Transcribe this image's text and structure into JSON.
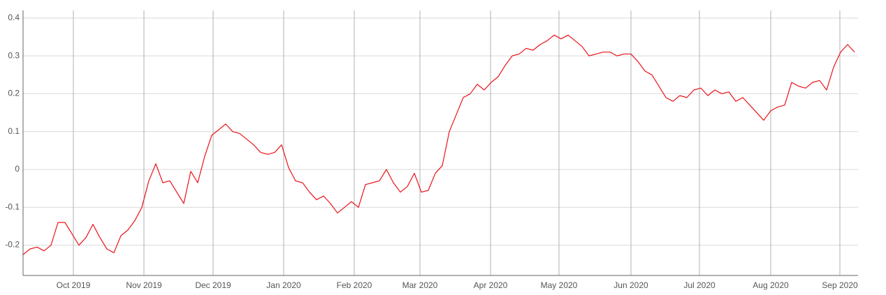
{
  "chart_data": {
    "type": "line",
    "color": "#e8141b",
    "values": [
      -0.225,
      -0.21,
      -0.205,
      -0.215,
      -0.2,
      -0.14,
      -0.14,
      -0.17,
      -0.2,
      -0.18,
      -0.145,
      -0.18,
      -0.21,
      -0.22,
      -0.175,
      -0.16,
      -0.135,
      -0.1,
      -0.03,
      0.015,
      -0.035,
      -0.03,
      -0.06,
      -0.09,
      -0.005,
      -0.035,
      0.035,
      0.09,
      0.105,
      0.12,
      0.1,
      0.095,
      0.08,
      0.065,
      0.045,
      0.04,
      0.045,
      0.065,
      0.005,
      -0.03,
      -0.035,
      -0.06,
      -0.08,
      -0.07,
      -0.09,
      -0.115,
      -0.1,
      -0.085,
      -0.1,
      -0.04,
      -0.035,
      -0.03,
      0.0,
      -0.035,
      -0.06,
      -0.045,
      -0.01,
      -0.06,
      -0.055,
      -0.01,
      0.01,
      0.1,
      0.145,
      0.19,
      0.2,
      0.225,
      0.21,
      0.23,
      0.245,
      0.275,
      0.3,
      0.305,
      0.32,
      0.315,
      0.33,
      0.34,
      0.355,
      0.345,
      0.355,
      0.34,
      0.325,
      0.3,
      0.305,
      0.31,
      0.31,
      0.3,
      0.305,
      0.305,
      0.285,
      0.26,
      0.25,
      0.22,
      0.19,
      0.18,
      0.195,
      0.19,
      0.21,
      0.215,
      0.195,
      0.21,
      0.2,
      0.205,
      0.18,
      0.19,
      0.17,
      0.15,
      0.13,
      0.155,
      0.165,
      0.17,
      0.23,
      0.22,
      0.215,
      0.23,
      0.235,
      0.21,
      0.27,
      0.31,
      0.33,
      0.31
    ],
    "xlim": [
      0,
      119.5
    ],
    "xticks": [
      {
        "value": 7.2,
        "label": "Oct 2019"
      },
      {
        "value": 17.3,
        "label": "Nov 2019"
      },
      {
        "value": 27.2,
        "label": "Dec 2019"
      },
      {
        "value": 37.3,
        "label": "Jan 2020"
      },
      {
        "value": 47.4,
        "label": "Feb 2020"
      },
      {
        "value": 56.8,
        "label": "Mar 2020"
      },
      {
        "value": 66.9,
        "label": "Apr 2020"
      },
      {
        "value": 76.7,
        "label": "May 2020"
      },
      {
        "value": 87,
        "label": "Jun 2020"
      },
      {
        "value": 96.8,
        "label": "Jul 2020"
      },
      {
        "value": 107,
        "label": "Aug 2020"
      },
      {
        "value": 116.9,
        "label": "Sep 2020"
      }
    ],
    "ylim": [
      -0.28,
      0.42
    ],
    "yticks": [
      -0.2,
      -0.1,
      0,
      0.1,
      0.2,
      0.3,
      0.4
    ],
    "grid": true
  }
}
